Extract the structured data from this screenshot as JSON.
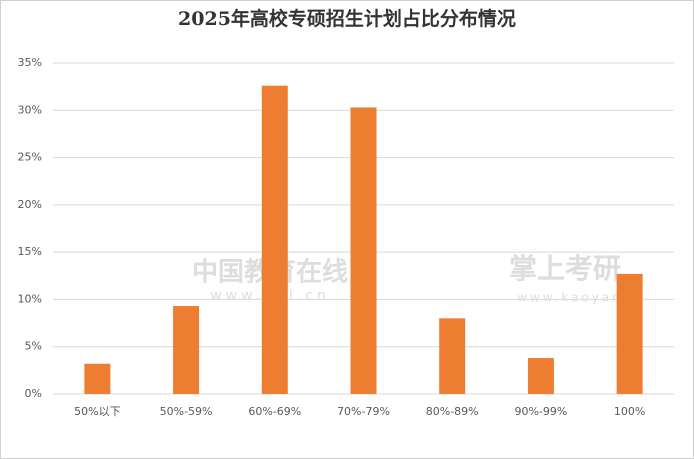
{
  "chart_data": {
    "type": "bar",
    "title": "2025年高校专硕招生计划占比分布情况",
    "categories": [
      "50%以下",
      "50%-59%",
      "60%-69%",
      "70%-79%",
      "80%-89%",
      "90%-99%",
      "100%"
    ],
    "values": [
      3.2,
      9.3,
      32.6,
      30.3,
      8.0,
      3.8,
      12.7
    ],
    "color": "#ed7d31",
    "ylim": [
      0,
      35
    ],
    "yticks": [
      {
        "value": 0,
        "label": "0%"
      },
      {
        "value": 5,
        "label": "5%"
      },
      {
        "value": 10,
        "label": "10%"
      },
      {
        "value": 15,
        "label": "15%"
      },
      {
        "value": 20,
        "label": "20%"
      },
      {
        "value": 25,
        "label": "25%"
      },
      {
        "value": 30,
        "label": "30%"
      },
      {
        "value": 35,
        "label": "35%"
      }
    ],
    "grid": true,
    "watermarks": [
      "中国教育在线",
      "www.eol.cn",
      "掌上考研",
      "www.kaoyan"
    ]
  }
}
